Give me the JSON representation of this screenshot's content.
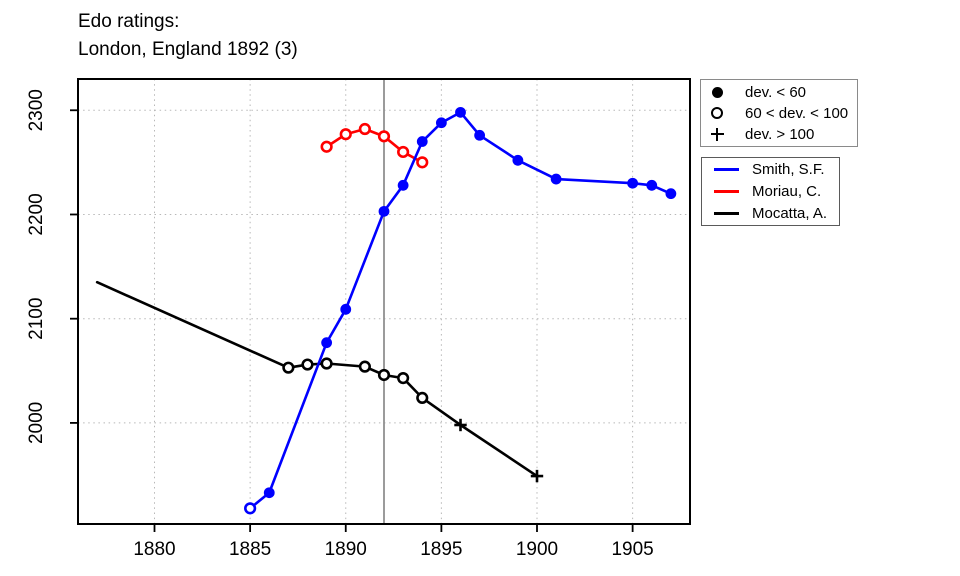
{
  "title": {
    "line1": "Edo ratings:",
    "line2": "London, England 1892 (3)"
  },
  "marker_legend": {
    "items": [
      {
        "symbol": "filled-circle",
        "label": "dev. < 60"
      },
      {
        "symbol": "open-circle",
        "label": "60 < dev. < 100"
      },
      {
        "symbol": "plus",
        "label": "dev. > 100"
      }
    ]
  },
  "chart_data": {
    "type": "line",
    "title": "Edo ratings: London, England 1892 (3)",
    "xlabel": "",
    "ylabel": "",
    "xlim": [
      1876,
      1908
    ],
    "ylim": [
      1903,
      2330
    ],
    "x_ticks": [
      1880,
      1885,
      1890,
      1895,
      1900,
      1905
    ],
    "y_ticks": [
      2000,
      2100,
      2200,
      2300
    ],
    "grid": "dotted",
    "grid_color": "#b8b8b8",
    "event_line_x": 1892,
    "event_line_color": "#909090",
    "legend_position": "right-outside",
    "marker_meaning": {
      "filled": "dev. < 60",
      "open": "60 < dev. < 100",
      "plus": "dev. > 100"
    },
    "series": [
      {
        "name": "Smith, S.F.",
        "color": "#0000ff",
        "points": [
          {
            "year": 1885,
            "rating": 1918,
            "marker": "open"
          },
          {
            "year": 1886,
            "rating": 1933,
            "marker": "filled"
          },
          {
            "year": 1889,
            "rating": 2077,
            "marker": "filled"
          },
          {
            "year": 1890,
            "rating": 2109,
            "marker": "filled"
          },
          {
            "year": 1892,
            "rating": 2203,
            "marker": "filled"
          },
          {
            "year": 1893,
            "rating": 2228,
            "marker": "filled"
          },
          {
            "year": 1894,
            "rating": 2270,
            "marker": "filled"
          },
          {
            "year": 1895,
            "rating": 2288,
            "marker": "filled"
          },
          {
            "year": 1896,
            "rating": 2298,
            "marker": "filled"
          },
          {
            "year": 1897,
            "rating": 2276,
            "marker": "filled"
          },
          {
            "year": 1899,
            "rating": 2252,
            "marker": "filled"
          },
          {
            "year": 1901,
            "rating": 2234,
            "marker": "filled"
          },
          {
            "year": 1905,
            "rating": 2230,
            "marker": "filled"
          },
          {
            "year": 1906,
            "rating": 2228,
            "marker": "filled"
          },
          {
            "year": 1907,
            "rating": 2220,
            "marker": "filled"
          }
        ]
      },
      {
        "name": "Moriau, C.",
        "color": "#ff0000",
        "points": [
          {
            "year": 1889,
            "rating": 2265,
            "marker": "open"
          },
          {
            "year": 1890,
            "rating": 2277,
            "marker": "open"
          },
          {
            "year": 1891,
            "rating": 2282,
            "marker": "open"
          },
          {
            "year": 1892,
            "rating": 2275,
            "marker": "open"
          },
          {
            "year": 1893,
            "rating": 2260,
            "marker": "open"
          },
          {
            "year": 1894,
            "rating": 2250,
            "marker": "open"
          }
        ]
      },
      {
        "name": "Mocatta, A.",
        "color": "#000000",
        "points": [
          {
            "year": 1877,
            "rating": 2135,
            "marker": "none"
          },
          {
            "year": 1887,
            "rating": 2053,
            "marker": "open"
          },
          {
            "year": 1888,
            "rating": 2056,
            "marker": "open"
          },
          {
            "year": 1889,
            "rating": 2057,
            "marker": "open"
          },
          {
            "year": 1891,
            "rating": 2054,
            "marker": "open"
          },
          {
            "year": 1892,
            "rating": 2046,
            "marker": "open"
          },
          {
            "year": 1893,
            "rating": 2043,
            "marker": "open"
          },
          {
            "year": 1894,
            "rating": 2024,
            "marker": "open"
          },
          {
            "year": 1896,
            "rating": 1998,
            "marker": "plus"
          },
          {
            "year": 1900,
            "rating": 1949,
            "marker": "plus"
          }
        ]
      }
    ]
  }
}
